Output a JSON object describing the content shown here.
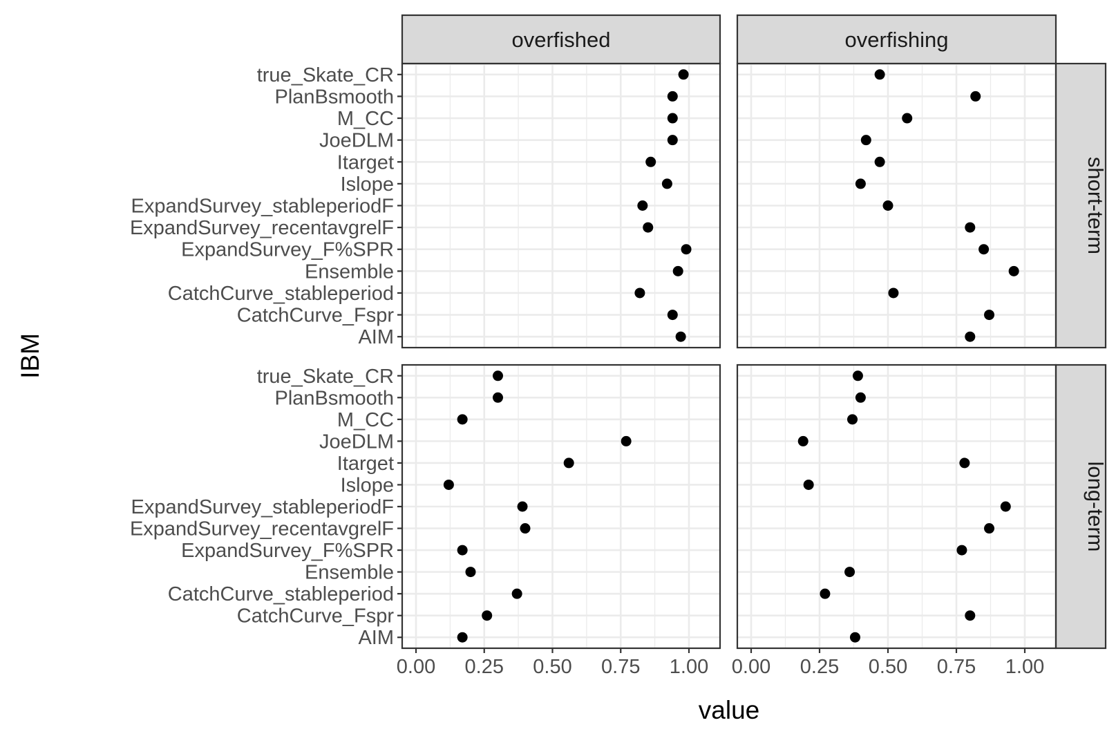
{
  "chart_data": {
    "type": "scatter",
    "xlabel": "value",
    "ylabel": "IBM",
    "xlim": [
      0,
      1
    ],
    "x_ticks": [
      "0.00",
      "0.25",
      "0.50",
      "0.75",
      "1.00"
    ],
    "x_tick_values": [
      0,
      0.25,
      0.5,
      0.75,
      1.0
    ],
    "categories": [
      "true_Skate_CR",
      "PlanBsmooth",
      "M_CC",
      "JoeDLM",
      "Itarget",
      "Islope",
      "ExpandSurvey_stableperiodF",
      "ExpandSurvey_recentavgrelF",
      "ExpandSurvey_F%SPR",
      "Ensemble",
      "CatchCurve_stableperiod",
      "CatchCurve_Fspr",
      "AIM"
    ],
    "facet_columns": [
      "overfished",
      "overfishing"
    ],
    "facet_rows": [
      "short-term",
      "long-term"
    ],
    "grid": true,
    "panels": [
      {
        "row": "short-term",
        "column": "overfished",
        "values": [
          0.98,
          0.94,
          0.94,
          0.94,
          0.86,
          0.92,
          0.83,
          0.85,
          0.99,
          0.96,
          0.82,
          0.94,
          0.97
        ]
      },
      {
        "row": "short-term",
        "column": "overfishing",
        "values": [
          0.47,
          0.82,
          0.57,
          0.42,
          0.47,
          0.4,
          0.5,
          0.8,
          0.85,
          0.96,
          0.52,
          0.87,
          0.8
        ]
      },
      {
        "row": "long-term",
        "column": "overfished",
        "values": [
          0.3,
          0.3,
          0.17,
          0.77,
          0.56,
          0.12,
          0.39,
          0.4,
          0.17,
          0.2,
          0.37,
          0.26,
          0.17
        ]
      },
      {
        "row": "long-term",
        "column": "overfishing",
        "values": [
          0.39,
          0.4,
          0.37,
          0.19,
          0.78,
          0.21,
          0.93,
          0.87,
          0.77,
          0.36,
          0.27,
          0.8,
          0.38
        ]
      }
    ],
    "colors": {
      "points": "#000000",
      "strip": "#d9d9d9",
      "grid": "#ebebeb",
      "border": "#333333"
    }
  }
}
